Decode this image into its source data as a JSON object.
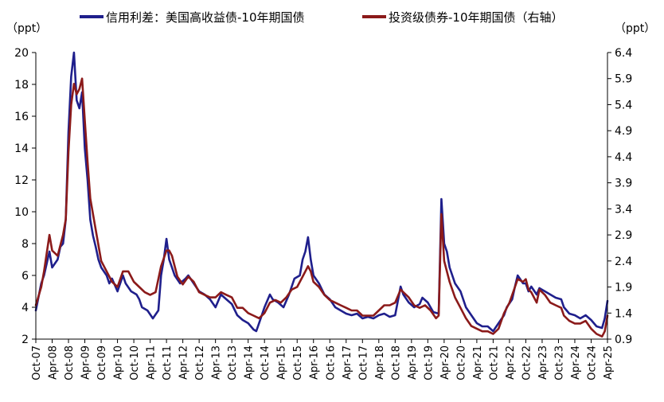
{
  "chart_data": {
    "type": "line",
    "legend_position": "top",
    "grid": false,
    "left_axis": {
      "unit_label": "（ppt）",
      "ylim": [
        2,
        20
      ],
      "ticks": [
        2,
        4,
        6,
        8,
        10,
        12,
        14,
        16,
        18,
        20
      ],
      "tick_labels": [
        "2",
        "4",
        "6",
        "8",
        "10",
        "12",
        "14",
        "16",
        "18",
        "20"
      ]
    },
    "right_axis": {
      "unit_label": "（ppt）",
      "ylim": [
        0.9,
        6.4
      ],
      "ticks": [
        0.9,
        1.4,
        1.9,
        2.4,
        2.9,
        3.4,
        3.9,
        4.4,
        4.9,
        5.4,
        5.9,
        6.4
      ],
      "tick_labels": [
        "0.9",
        "1.4",
        "1.9",
        "2.4",
        "2.9",
        "3.4",
        "3.9",
        "4.4",
        "4.9",
        "5.4",
        "5.9",
        "6.4"
      ]
    },
    "x_axis": {
      "range": [
        "2007-10",
        "2025-04"
      ],
      "tick_labels": [
        "Oct-07",
        "Apr-08",
        "Oct-08",
        "Apr-09",
        "Oct-09",
        "Apr-10",
        "Oct-10",
        "Apr-11",
        "Oct-11",
        "Apr-12",
        "Oct-12",
        "Apr-13",
        "Oct-13",
        "Apr-14",
        "Oct-14",
        "Apr-15",
        "Oct-15",
        "Apr-16",
        "Oct-16",
        "Apr-17",
        "Oct-17",
        "Apr-18",
        "Oct-18",
        "Apr-19",
        "Oct-19",
        "Apr-20",
        "Oct-20",
        "Apr-21",
        "Oct-21",
        "Apr-22",
        "Oct-22",
        "Apr-23",
        "Oct-23",
        "Apr-24",
        "Oct-24",
        "Apr-25"
      ]
    },
    "series": [
      {
        "name": "信用利差：美国高收益债-10年期国债",
        "axis": "left",
        "color": "#1f1f8c",
        "points": [
          [
            "2007-10",
            3.8
          ],
          [
            "2007-12",
            5.5
          ],
          [
            "2008-01",
            6.0
          ],
          [
            "2008-03",
            7.5
          ],
          [
            "2008-04",
            6.5
          ],
          [
            "2008-06",
            7.0
          ],
          [
            "2008-07",
            7.8
          ],
          [
            "2008-08",
            8.0
          ],
          [
            "2008-09",
            9.5
          ],
          [
            "2008-10",
            15.0
          ],
          [
            "2008-11",
            18.5
          ],
          [
            "2008-12",
            20.0
          ],
          [
            "2009-01",
            17.0
          ],
          [
            "2009-02",
            16.5
          ],
          [
            "2009-03",
            17.5
          ],
          [
            "2009-04",
            14.0
          ],
          [
            "2009-05",
            12.0
          ],
          [
            "2009-06",
            9.5
          ],
          [
            "2009-07",
            8.5
          ],
          [
            "2009-08",
            7.8
          ],
          [
            "2009-09",
            7.0
          ],
          [
            "2009-10",
            6.5
          ],
          [
            "2009-12",
            6.0
          ],
          [
            "2010-01",
            5.5
          ],
          [
            "2010-02",
            5.8
          ],
          [
            "2010-04",
            5.0
          ],
          [
            "2010-06",
            6.0
          ],
          [
            "2010-07",
            5.5
          ],
          [
            "2010-09",
            5.0
          ],
          [
            "2010-11",
            4.8
          ],
          [
            "2010-12",
            4.5
          ],
          [
            "2011-01",
            4.0
          ],
          [
            "2011-03",
            3.8
          ],
          [
            "2011-05",
            3.3
          ],
          [
            "2011-07",
            3.8
          ],
          [
            "2011-08",
            6.0
          ],
          [
            "2011-09",
            7.0
          ],
          [
            "2011-10",
            8.3
          ],
          [
            "2011-11",
            7.0
          ],
          [
            "2011-12",
            6.5
          ],
          [
            "2012-01",
            6.0
          ],
          [
            "2012-03",
            5.5
          ],
          [
            "2012-05",
            5.8
          ],
          [
            "2012-06",
            6.0
          ],
          [
            "2012-08",
            5.5
          ],
          [
            "2012-10",
            5.0
          ],
          [
            "2012-12",
            4.8
          ],
          [
            "2013-02",
            4.5
          ],
          [
            "2013-04",
            4.0
          ],
          [
            "2013-06",
            4.8
          ],
          [
            "2013-08",
            4.5
          ],
          [
            "2013-10",
            4.2
          ],
          [
            "2013-12",
            3.5
          ],
          [
            "2014-02",
            3.2
          ],
          [
            "2014-04",
            3.0
          ],
          [
            "2014-06",
            2.6
          ],
          [
            "2014-07",
            2.5
          ],
          [
            "2014-08",
            3.0
          ],
          [
            "2014-09",
            3.5
          ],
          [
            "2014-10",
            4.0
          ],
          [
            "2014-12",
            4.8
          ],
          [
            "2015-01",
            4.5
          ],
          [
            "2015-03",
            4.3
          ],
          [
            "2015-05",
            4.0
          ],
          [
            "2015-07",
            4.8
          ],
          [
            "2015-09",
            5.8
          ],
          [
            "2015-11",
            6.0
          ],
          [
            "2015-12",
            7.0
          ],
          [
            "2016-01",
            7.5
          ],
          [
            "2016-02",
            8.4
          ],
          [
            "2016-03",
            7.0
          ],
          [
            "2016-04",
            6.0
          ],
          [
            "2016-06",
            5.5
          ],
          [
            "2016-08",
            4.8
          ],
          [
            "2016-10",
            4.5
          ],
          [
            "2016-12",
            4.0
          ],
          [
            "2017-02",
            3.8
          ],
          [
            "2017-04",
            3.6
          ],
          [
            "2017-06",
            3.5
          ],
          [
            "2017-08",
            3.6
          ],
          [
            "2017-10",
            3.3
          ],
          [
            "2017-12",
            3.4
          ],
          [
            "2018-02",
            3.3
          ],
          [
            "2018-04",
            3.5
          ],
          [
            "2018-06",
            3.6
          ],
          [
            "2018-08",
            3.4
          ],
          [
            "2018-10",
            3.5
          ],
          [
            "2018-12",
            5.3
          ],
          [
            "2019-01",
            4.8
          ],
          [
            "2019-03",
            4.3
          ],
          [
            "2019-05",
            4.0
          ],
          [
            "2019-07",
            4.2
          ],
          [
            "2019-08",
            4.6
          ],
          [
            "2019-10",
            4.3
          ],
          [
            "2019-12",
            3.7
          ],
          [
            "2020-02",
            3.6
          ],
          [
            "2020-03",
            10.8
          ],
          [
            "2020-04",
            8.0
          ],
          [
            "2020-05",
            7.5
          ],
          [
            "2020-06",
            6.5
          ],
          [
            "2020-08",
            5.5
          ],
          [
            "2020-10",
            5.0
          ],
          [
            "2020-12",
            4.0
          ],
          [
            "2021-02",
            3.5
          ],
          [
            "2021-04",
            3.0
          ],
          [
            "2021-06",
            2.8
          ],
          [
            "2021-08",
            2.8
          ],
          [
            "2021-10",
            2.5
          ],
          [
            "2021-12",
            3.0
          ],
          [
            "2022-02",
            3.5
          ],
          [
            "2022-03",
            4.0
          ],
          [
            "2022-05",
            4.5
          ],
          [
            "2022-06",
            5.3
          ],
          [
            "2022-07",
            6.0
          ],
          [
            "2022-09",
            5.5
          ],
          [
            "2022-10",
            5.5
          ],
          [
            "2022-11",
            5.0
          ],
          [
            "2022-12",
            5.3
          ],
          [
            "2023-02",
            4.8
          ],
          [
            "2023-03",
            5.2
          ],
          [
            "2023-05",
            5.0
          ],
          [
            "2023-07",
            4.8
          ],
          [
            "2023-09",
            4.6
          ],
          [
            "2023-11",
            4.5
          ],
          [
            "2023-12",
            4.0
          ],
          [
            "2024-02",
            3.6
          ],
          [
            "2024-04",
            3.5
          ],
          [
            "2024-06",
            3.3
          ],
          [
            "2024-08",
            3.5
          ],
          [
            "2024-10",
            3.2
          ],
          [
            "2024-12",
            2.8
          ],
          [
            "2025-02",
            2.7
          ],
          [
            "2025-03",
            3.3
          ],
          [
            "2025-04",
            4.4
          ]
        ]
      },
      {
        "name": "投资级债券-10年期国债（右轴）",
        "axis": "right",
        "color": "#8b1a1a",
        "points": [
          [
            "2007-10",
            1.55
          ],
          [
            "2007-12",
            1.9
          ],
          [
            "2008-01",
            2.2
          ],
          [
            "2008-03",
            2.9
          ],
          [
            "2008-04",
            2.6
          ],
          [
            "2008-06",
            2.5
          ],
          [
            "2008-08",
            2.9
          ],
          [
            "2008-09",
            3.2
          ],
          [
            "2008-10",
            4.5
          ],
          [
            "2008-11",
            5.4
          ],
          [
            "2008-12",
            5.8
          ],
          [
            "2009-01",
            5.6
          ],
          [
            "2009-02",
            5.7
          ],
          [
            "2009-03",
            5.9
          ],
          [
            "2009-04",
            5.1
          ],
          [
            "2009-05",
            4.3
          ],
          [
            "2009-06",
            3.6
          ],
          [
            "2009-08",
            3.0
          ],
          [
            "2009-10",
            2.4
          ],
          [
            "2009-12",
            2.2
          ],
          [
            "2010-02",
            2.0
          ],
          [
            "2010-04",
            1.9
          ],
          [
            "2010-06",
            2.2
          ],
          [
            "2010-08",
            2.2
          ],
          [
            "2010-10",
            2.0
          ],
          [
            "2010-12",
            1.9
          ],
          [
            "2011-02",
            1.8
          ],
          [
            "2011-04",
            1.75
          ],
          [
            "2011-06",
            1.8
          ],
          [
            "2011-08",
            2.3
          ],
          [
            "2011-10",
            2.6
          ],
          [
            "2011-11",
            2.6
          ],
          [
            "2011-12",
            2.5
          ],
          [
            "2012-02",
            2.1
          ],
          [
            "2012-04",
            1.95
          ],
          [
            "2012-06",
            2.1
          ],
          [
            "2012-08",
            2.0
          ],
          [
            "2012-10",
            1.8
          ],
          [
            "2012-12",
            1.75
          ],
          [
            "2013-02",
            1.7
          ],
          [
            "2013-04",
            1.7
          ],
          [
            "2013-06",
            1.8
          ],
          [
            "2013-08",
            1.75
          ],
          [
            "2013-10",
            1.7
          ],
          [
            "2013-12",
            1.5
          ],
          [
            "2014-02",
            1.5
          ],
          [
            "2014-04",
            1.4
          ],
          [
            "2014-06",
            1.35
          ],
          [
            "2014-08",
            1.3
          ],
          [
            "2014-10",
            1.4
          ],
          [
            "2014-12",
            1.6
          ],
          [
            "2015-02",
            1.65
          ],
          [
            "2015-04",
            1.6
          ],
          [
            "2015-06",
            1.7
          ],
          [
            "2015-08",
            1.85
          ],
          [
            "2015-10",
            1.9
          ],
          [
            "2015-12",
            2.1
          ],
          [
            "2016-02",
            2.3
          ],
          [
            "2016-03",
            2.2
          ],
          [
            "2016-04",
            2.0
          ],
          [
            "2016-06",
            1.9
          ],
          [
            "2016-08",
            1.75
          ],
          [
            "2016-10",
            1.65
          ],
          [
            "2016-12",
            1.6
          ],
          [
            "2017-02",
            1.55
          ],
          [
            "2017-04",
            1.5
          ],
          [
            "2017-06",
            1.45
          ],
          [
            "2017-08",
            1.45
          ],
          [
            "2017-10",
            1.35
          ],
          [
            "2017-12",
            1.35
          ],
          [
            "2018-02",
            1.35
          ],
          [
            "2018-04",
            1.45
          ],
          [
            "2018-06",
            1.55
          ],
          [
            "2018-08",
            1.55
          ],
          [
            "2018-10",
            1.6
          ],
          [
            "2018-12",
            1.85
          ],
          [
            "2019-01",
            1.8
          ],
          [
            "2019-03",
            1.7
          ],
          [
            "2019-05",
            1.55
          ],
          [
            "2019-07",
            1.5
          ],
          [
            "2019-09",
            1.55
          ],
          [
            "2019-11",
            1.45
          ],
          [
            "2020-01",
            1.3
          ],
          [
            "2020-02",
            1.35
          ],
          [
            "2020-03",
            3.3
          ],
          [
            "2020-04",
            2.4
          ],
          [
            "2020-06",
            2.0
          ],
          [
            "2020-08",
            1.7
          ],
          [
            "2020-10",
            1.5
          ],
          [
            "2020-12",
            1.3
          ],
          [
            "2021-02",
            1.15
          ],
          [
            "2021-04",
            1.1
          ],
          [
            "2021-06",
            1.05
          ],
          [
            "2021-08",
            1.05
          ],
          [
            "2021-10",
            1.0
          ],
          [
            "2021-12",
            1.1
          ],
          [
            "2022-02",
            1.4
          ],
          [
            "2022-04",
            1.6
          ],
          [
            "2022-06",
            1.9
          ],
          [
            "2022-07",
            2.05
          ],
          [
            "2022-09",
            2.0
          ],
          [
            "2022-10",
            2.05
          ],
          [
            "2022-11",
            1.85
          ],
          [
            "2022-12",
            1.8
          ],
          [
            "2023-02",
            1.6
          ],
          [
            "2023-03",
            1.85
          ],
          [
            "2023-05",
            1.75
          ],
          [
            "2023-07",
            1.6
          ],
          [
            "2023-09",
            1.55
          ],
          [
            "2023-11",
            1.5
          ],
          [
            "2023-12",
            1.35
          ],
          [
            "2024-02",
            1.25
          ],
          [
            "2024-04",
            1.2
          ],
          [
            "2024-06",
            1.2
          ],
          [
            "2024-08",
            1.25
          ],
          [
            "2024-10",
            1.1
          ],
          [
            "2024-12",
            1.0
          ],
          [
            "2025-02",
            0.95
          ],
          [
            "2025-03",
            1.05
          ],
          [
            "2025-04",
            1.35
          ]
        ]
      }
    ]
  }
}
